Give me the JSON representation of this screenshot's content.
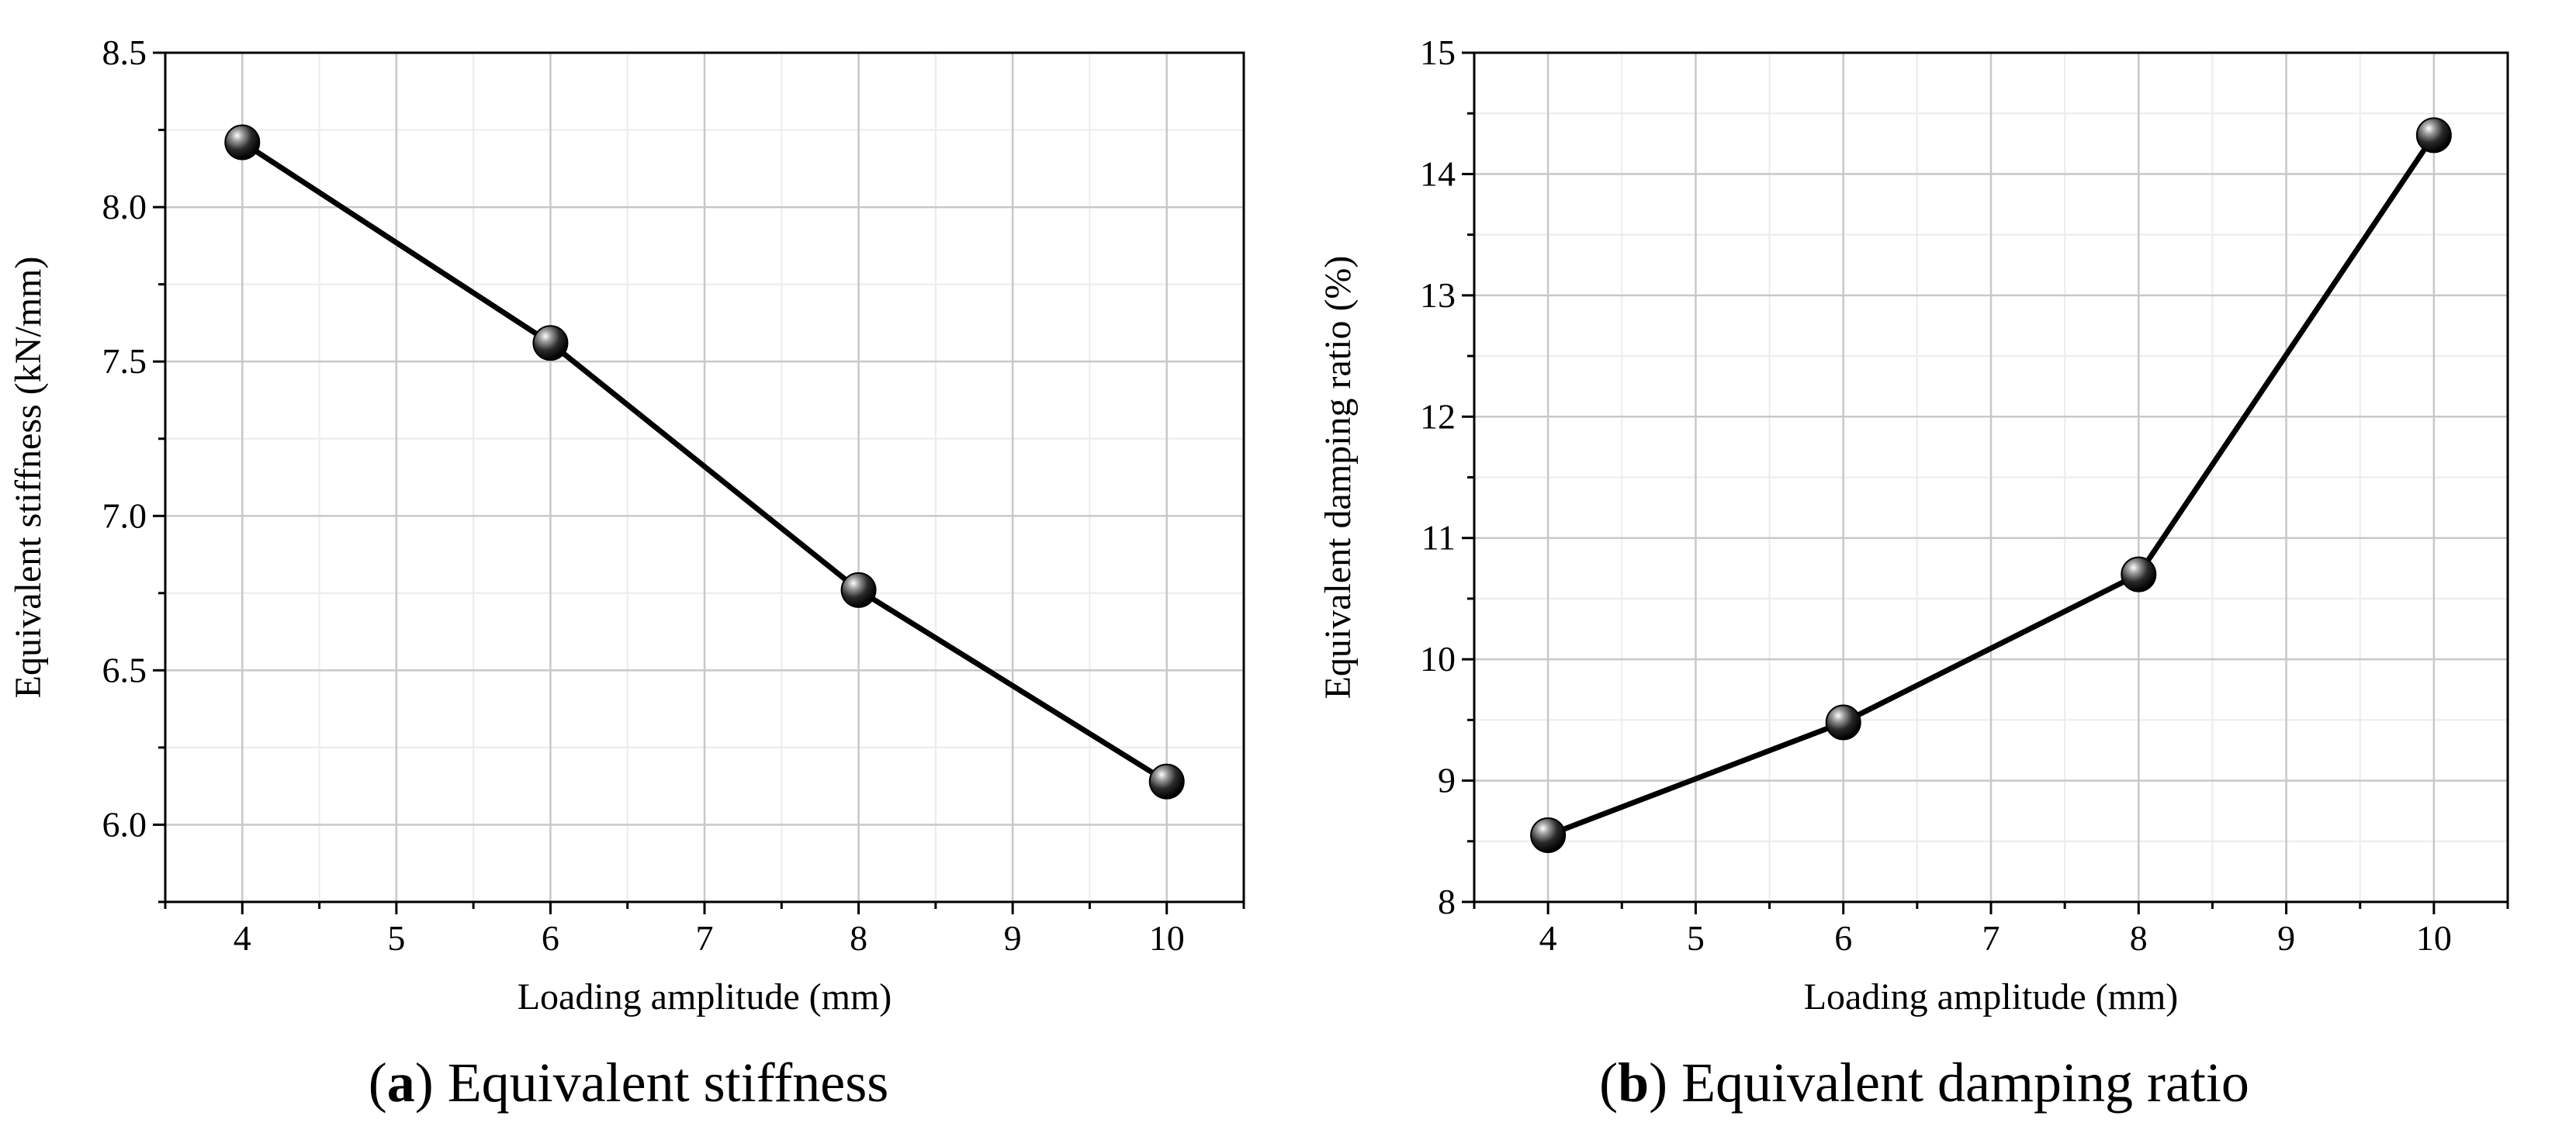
{
  "chart_data": [
    {
      "type": "line",
      "id": "a",
      "x": [
        4,
        6,
        8,
        10
      ],
      "values": [
        8.21,
        7.56,
        6.76,
        6.14
      ],
      "xlabel": "Loading amplitude (mm)",
      "ylabel": "Equivalent stiffness (kN/mm)",
      "xlim": [
        3.5,
        10.5
      ],
      "ylim": [
        5.75,
        8.5
      ],
      "xticks": [
        4,
        5,
        6,
        7,
        8,
        9,
        10
      ],
      "xtick_labels": [
        "4",
        "5",
        "6",
        "7",
        "8",
        "9",
        "10"
      ],
      "yticks": [
        6.0,
        6.5,
        7.0,
        7.5,
        8.0,
        8.5
      ],
      "ytick_labels": [
        "6.0",
        "6.5",
        "7.0",
        "7.5",
        "8.0",
        "8.5"
      ],
      "grid": true,
      "caption_letter": "a",
      "caption_text": "Equivalent stiffness"
    },
    {
      "type": "line",
      "id": "b",
      "x": [
        4,
        6,
        8,
        10
      ],
      "values": [
        8.55,
        9.48,
        10.7,
        14.32
      ],
      "xlabel": "Loading amplitude (mm)",
      "ylabel": "Equivalent damping ratio (%)",
      "xlim": [
        3.5,
        10.5
      ],
      "ylim": [
        8,
        15
      ],
      "xticks": [
        4,
        5,
        6,
        7,
        8,
        9,
        10
      ],
      "xtick_labels": [
        "4",
        "5",
        "6",
        "7",
        "8",
        "9",
        "10"
      ],
      "yticks": [
        8,
        9,
        10,
        11,
        12,
        13,
        14,
        15
      ],
      "ytick_labels": [
        "8",
        "9",
        "10",
        "11",
        "12",
        "13",
        "14",
        "15"
      ],
      "grid": true,
      "caption_letter": "b",
      "caption_text": "Equivalent damping ratio"
    }
  ]
}
